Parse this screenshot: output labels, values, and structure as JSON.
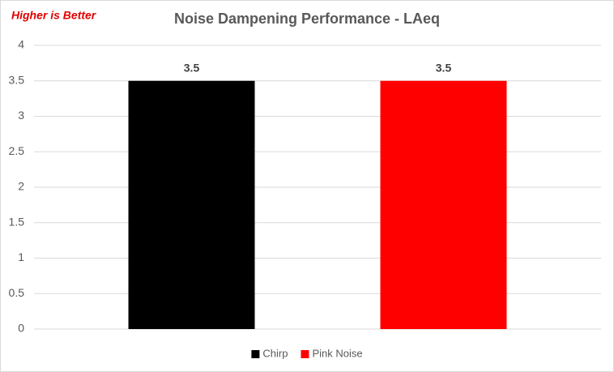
{
  "chart_data": {
    "type": "bar",
    "title": "Noise Dampening Performance - LAeq",
    "annotation": "Higher is Better",
    "categories": [
      null
    ],
    "series": [
      {
        "name": "Chirp",
        "color": "#000000",
        "values": [
          3.5
        ]
      },
      {
        "name": "Pink Noise",
        "color": "#ff0000",
        "values": [
          3.5
        ]
      }
    ],
    "ylim": [
      0,
      4
    ],
    "yticks": [
      0,
      0.5,
      1,
      1.5,
      2,
      2.5,
      3,
      3.5,
      4
    ],
    "grid": true,
    "legend": "bottom"
  }
}
